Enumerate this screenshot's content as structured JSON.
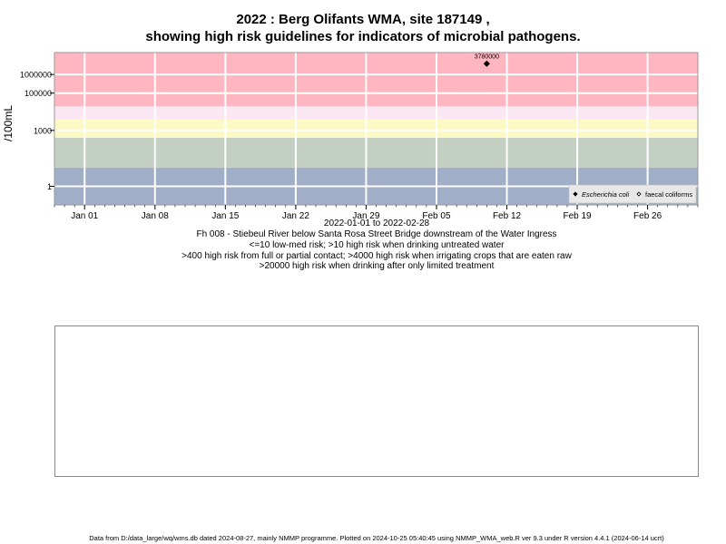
{
  "title_line1": "2022 : Berg Olifants WMA, site 187149 ,",
  "title_line2": "showing high risk guidelines for indicators of microbial pathogens.",
  "caption": {
    "date_range": "2022-01-01 to 2022-02-28",
    "site_description": "Fh 008 - Stiebeul River below Santa Rosa Street Bridge downstream of the Water Ingress",
    "guideline_1": "<=10 low-med risk; >10 high risk when drinking untreated water",
    "guideline_2": ">400 high risk from full or partial contact; >4000 high risk when irrigating crops that are eaten raw",
    "guideline_3": ">20000 high risk when drinking after only limited treatment"
  },
  "footer": "Data from D:/data_large/wq/wms.db dated 2024-08-27, mainly NMMP programme. Plotted on 2024-10-25 05:40:45 using NMMP_WMA_web.R ver 9.3 under R version 4.4.1 (2024-06-14 ucrt)",
  "colors": {
    "band_low": "#a0aec8",
    "band_med": "#c4cfc4",
    "band_contact": "#fdf9c4",
    "band_irrigation": "#fbe6f4",
    "band_high": "#ffb6c1",
    "grid": "#ffffff"
  },
  "chart_data": {
    "type": "scatter",
    "ylabel": "/100mL",
    "y_scale": "log",
    "ylim": [
      0.1,
      15000000
    ],
    "xlim": [
      "2021-12-29",
      "2022-03-03"
    ],
    "x_ticks": [
      {
        "date": "2022-01-01",
        "label": "Jan 01"
      },
      {
        "date": "2022-01-08",
        "label": "Jan 08"
      },
      {
        "date": "2022-01-15",
        "label": "Jan 15"
      },
      {
        "date": "2022-01-22",
        "label": "Jan 22"
      },
      {
        "date": "2022-01-29",
        "label": "Jan 29"
      },
      {
        "date": "2022-02-05",
        "label": "Feb 05"
      },
      {
        "date": "2022-02-12",
        "label": "Feb 12"
      },
      {
        "date": "2022-02-19",
        "label": "Feb 19"
      },
      {
        "date": "2022-02-26",
        "label": "Feb 26"
      }
    ],
    "y_ticks": [
      {
        "value": 1,
        "label": "1"
      },
      {
        "value": 1000,
        "label": "1000"
      },
      {
        "value": 100000,
        "label": "100000"
      },
      {
        "value": 1000000,
        "label": "1000000"
      }
    ],
    "risk_bands": [
      {
        "from": 0.1,
        "to": 10,
        "color_key": "band_low"
      },
      {
        "from": 10,
        "to": 400,
        "color_key": "band_med"
      },
      {
        "from": 400,
        "to": 4000,
        "color_key": "band_contact"
      },
      {
        "from": 4000,
        "to": 20000,
        "color_key": "band_irrigation"
      },
      {
        "from": 20000,
        "to": 15000000,
        "color_key": "band_high"
      }
    ],
    "grid": true,
    "legend_position": "bottom-right",
    "series": [
      {
        "name": "Escherichia coli",
        "marker": "filled-diamond",
        "points": [
          {
            "x": "2022-02-10",
            "y": 3780000,
            "label": "3780000"
          }
        ]
      },
      {
        "name": "faecal coliforms",
        "marker": "open-diamond",
        "points": []
      }
    ]
  }
}
